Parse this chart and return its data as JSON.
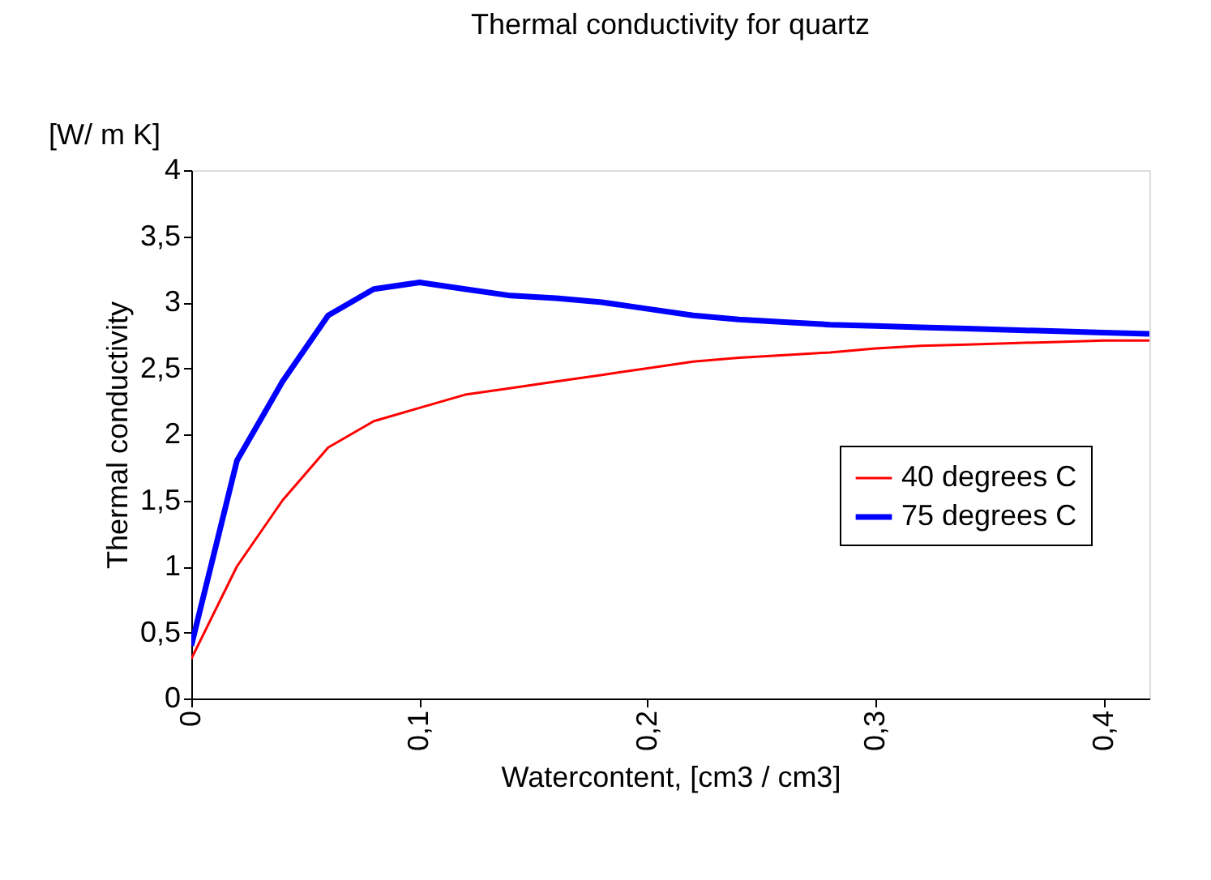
{
  "chart_data": {
    "type": "line",
    "title": "Thermal conductivity for quartz",
    "xlabel": "Watercontent, [cm3 / cm3]",
    "ylabel": "Thermal conductivity",
    "annotations": [
      "[W/ m K]"
    ],
    "x": [
      0,
      0.02,
      0.04,
      0.06,
      0.08,
      0.1,
      0.12,
      0.14,
      0.16,
      0.18,
      0.2,
      0.22,
      0.24,
      0.26,
      0.28,
      0.3,
      0.32,
      0.34,
      0.36,
      0.38,
      0.4,
      0.42
    ],
    "series": [
      {
        "name": "40 degrees C",
        "color": "#ff0000",
        "values": [
          0.3,
          1.0,
          1.5,
          1.9,
          2.1,
          2.2,
          2.3,
          2.35,
          2.4,
          2.45,
          2.5,
          2.55,
          2.58,
          2.6,
          2.62,
          2.65,
          2.67,
          2.68,
          2.69,
          2.7,
          2.71,
          2.71
        ]
      },
      {
        "name": "75 degrees C",
        "color": "#0000ff",
        "values": [
          0.4,
          1.8,
          2.4,
          2.9,
          3.1,
          3.15,
          3.1,
          3.05,
          3.03,
          3.0,
          2.95,
          2.9,
          2.87,
          2.85,
          2.83,
          2.82,
          2.81,
          2.8,
          2.79,
          2.78,
          2.77,
          2.76
        ]
      }
    ],
    "xlim": [
      0,
      0.42
    ],
    "xticks": [
      0,
      {
        "value": 0.1,
        "label": "0,1"
      },
      {
        "value": 0.2,
        "label": "0,2"
      },
      {
        "value": 0.3,
        "label": "0,3"
      },
      {
        "value": 0.4,
        "label": "0,4"
      }
    ],
    "ylim": [
      0,
      4
    ],
    "yticks": [
      0,
      {
        "value": 0.5,
        "label": "0,5"
      },
      1,
      {
        "value": 1.5,
        "label": "1,5"
      },
      2,
      {
        "value": 2.5,
        "label": "2,5"
      },
      3,
      {
        "value": 3.5,
        "label": "3,5"
      },
      4
    ],
    "grid": false,
    "legend": "right",
    "marker": "none",
    "line_style": "solid"
  }
}
